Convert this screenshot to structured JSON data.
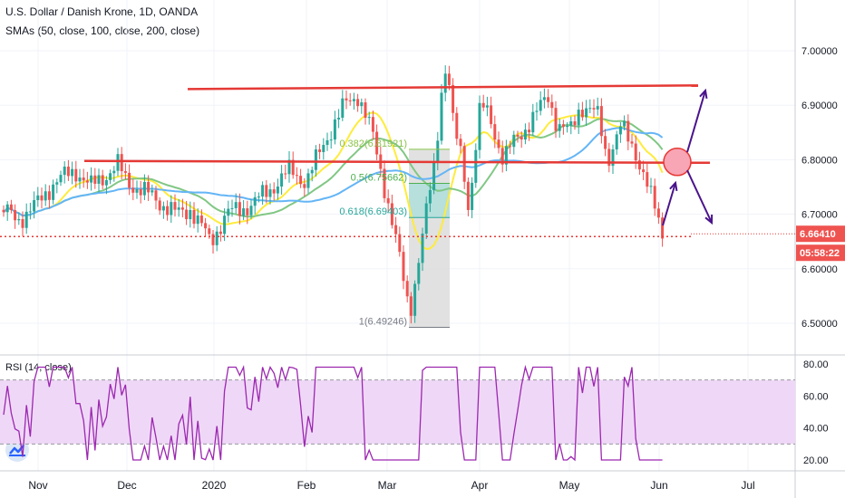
{
  "header": {
    "title": "U.S. Dollar / Danish Krone, 1D, OANDA",
    "indicators": "SMAs (50, close, 100, close, 200, close)"
  },
  "rsi": {
    "label": "RSI (14, close)"
  },
  "price_badges": {
    "last": "6.66410",
    "countdown": "05:58:22"
  },
  "colors": {
    "up": "#26a69a",
    "down": "#ef5350",
    "sma50": "#ffeb3b",
    "sma100": "#81c784",
    "sma200": "#64b5f6",
    "resistance": "#e53935",
    "rsi_line": "#9c27b0",
    "rsi_band": "#efd8f7",
    "arrows": "#4a148c",
    "fib_box": "#d9d9d9"
  },
  "chart_data": [
    {
      "type": "candlestick",
      "title": "U.S. Dollar / Danish Krone, 1D, OANDA",
      "ylim": [
        6.45,
        7.07
      ],
      "y_ticks": [
        "7.00000",
        "6.90000",
        "6.80000",
        "6.70000",
        "6.60000",
        "6.50000"
      ],
      "x_ticks": [
        "Nov",
        "Dec",
        "2020",
        "Feb",
        "Mar",
        "Apr",
        "May",
        "Jun",
        "Jul"
      ],
      "closes_by_period": [
        {
          "period": "Nov",
          "close": 6.73
        },
        {
          "period": "Dec",
          "close": 6.76
        },
        {
          "period": "2020",
          "close": 6.71
        },
        {
          "period": "Feb",
          "close": 6.78
        },
        {
          "period": "Mar",
          "close": 6.58
        },
        {
          "period": "Apr",
          "close": 6.86
        },
        {
          "period": "May",
          "close": 6.85
        },
        {
          "period": "Jun",
          "close": 6.664
        }
      ],
      "moving_averages": [
        {
          "name": "SMA 50",
          "color": "#ffeb3b"
        },
        {
          "name": "SMA 100",
          "color": "#81c784"
        },
        {
          "name": "SMA 200",
          "color": "#64b5f6"
        }
      ],
      "fibonacci": [
        {
          "label": "0.382(6.81921)",
          "value": 6.81921
        },
        {
          "label": "0.5(6.75662)",
          "value": 6.75662
        },
        {
          "label": "0.618(6.69403)",
          "value": 6.69403
        },
        {
          "label": "1(6.49246)",
          "value": 6.49246
        }
      ],
      "horizontal_lines": [
        {
          "name": "upper resistance",
          "value": 6.933
        },
        {
          "name": "middle level",
          "value": 6.796
        },
        {
          "name": "dotted support",
          "value": 6.659
        }
      ],
      "last_price": 6.6641
    },
    {
      "type": "line",
      "title": "RSI (14, close)",
      "ylim": [
        15,
        85
      ],
      "y_ticks": [
        "80.00",
        "60.00",
        "40.00",
        "20.00"
      ],
      "band": [
        30,
        70
      ]
    }
  ]
}
